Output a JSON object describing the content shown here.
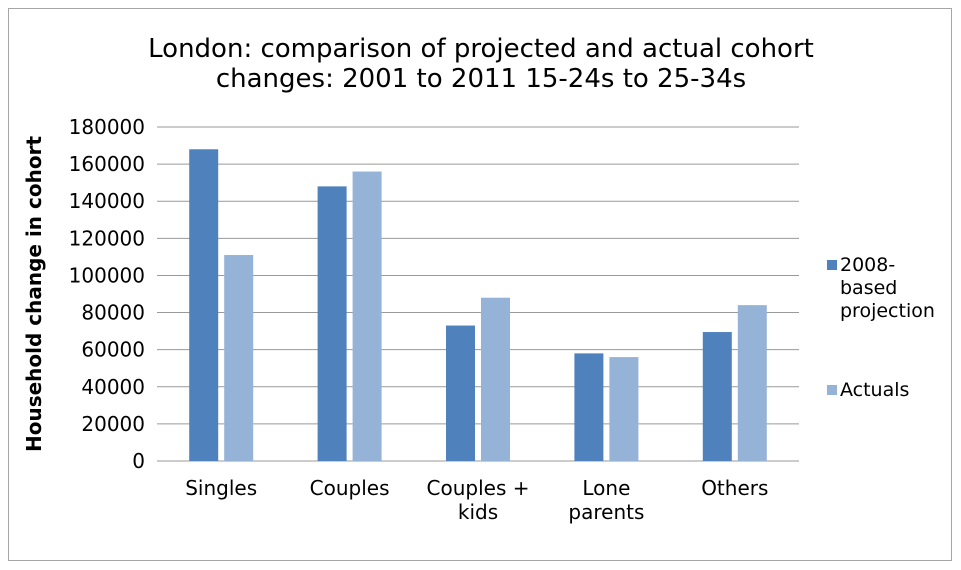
{
  "chart_data": {
    "type": "bar",
    "title": "London: comparison of projected and actual cohort changes: 2001 to 2011 15-24s to 25-34s",
    "title_lines": [
      "London: comparison of projected and actual cohort",
      "changes: 2001 to 2011 15-24s to 25-34s"
    ],
    "categories": [
      "Singles",
      "Couples",
      "Couples + kids",
      "Lone parents",
      "Others"
    ],
    "category_lines": [
      [
        "Singles"
      ],
      [
        "Couples"
      ],
      [
        "Couples +",
        "kids"
      ],
      [
        "Lone",
        "parents"
      ],
      [
        "Others"
      ]
    ],
    "series": [
      {
        "name": "2008-based projection",
        "legend_lines": [
          "2008-",
          "based",
          "projection"
        ],
        "color": "#4f81bd",
        "values": [
          168000,
          148000,
          73000,
          58000,
          69500
        ]
      },
      {
        "name": "Actuals",
        "legend_lines": [
          "Actuals"
        ],
        "color": "#95b3d7",
        "values": [
          111000,
          156000,
          88000,
          56000,
          84000
        ]
      }
    ],
    "xlabel": "",
    "ylabel": "Household change in cohort",
    "ylim": [
      0,
      180000
    ],
    "yticks": [
      0,
      20000,
      40000,
      60000,
      80000,
      100000,
      120000,
      140000,
      160000,
      180000
    ],
    "grid": true,
    "legend_position": "right"
  }
}
